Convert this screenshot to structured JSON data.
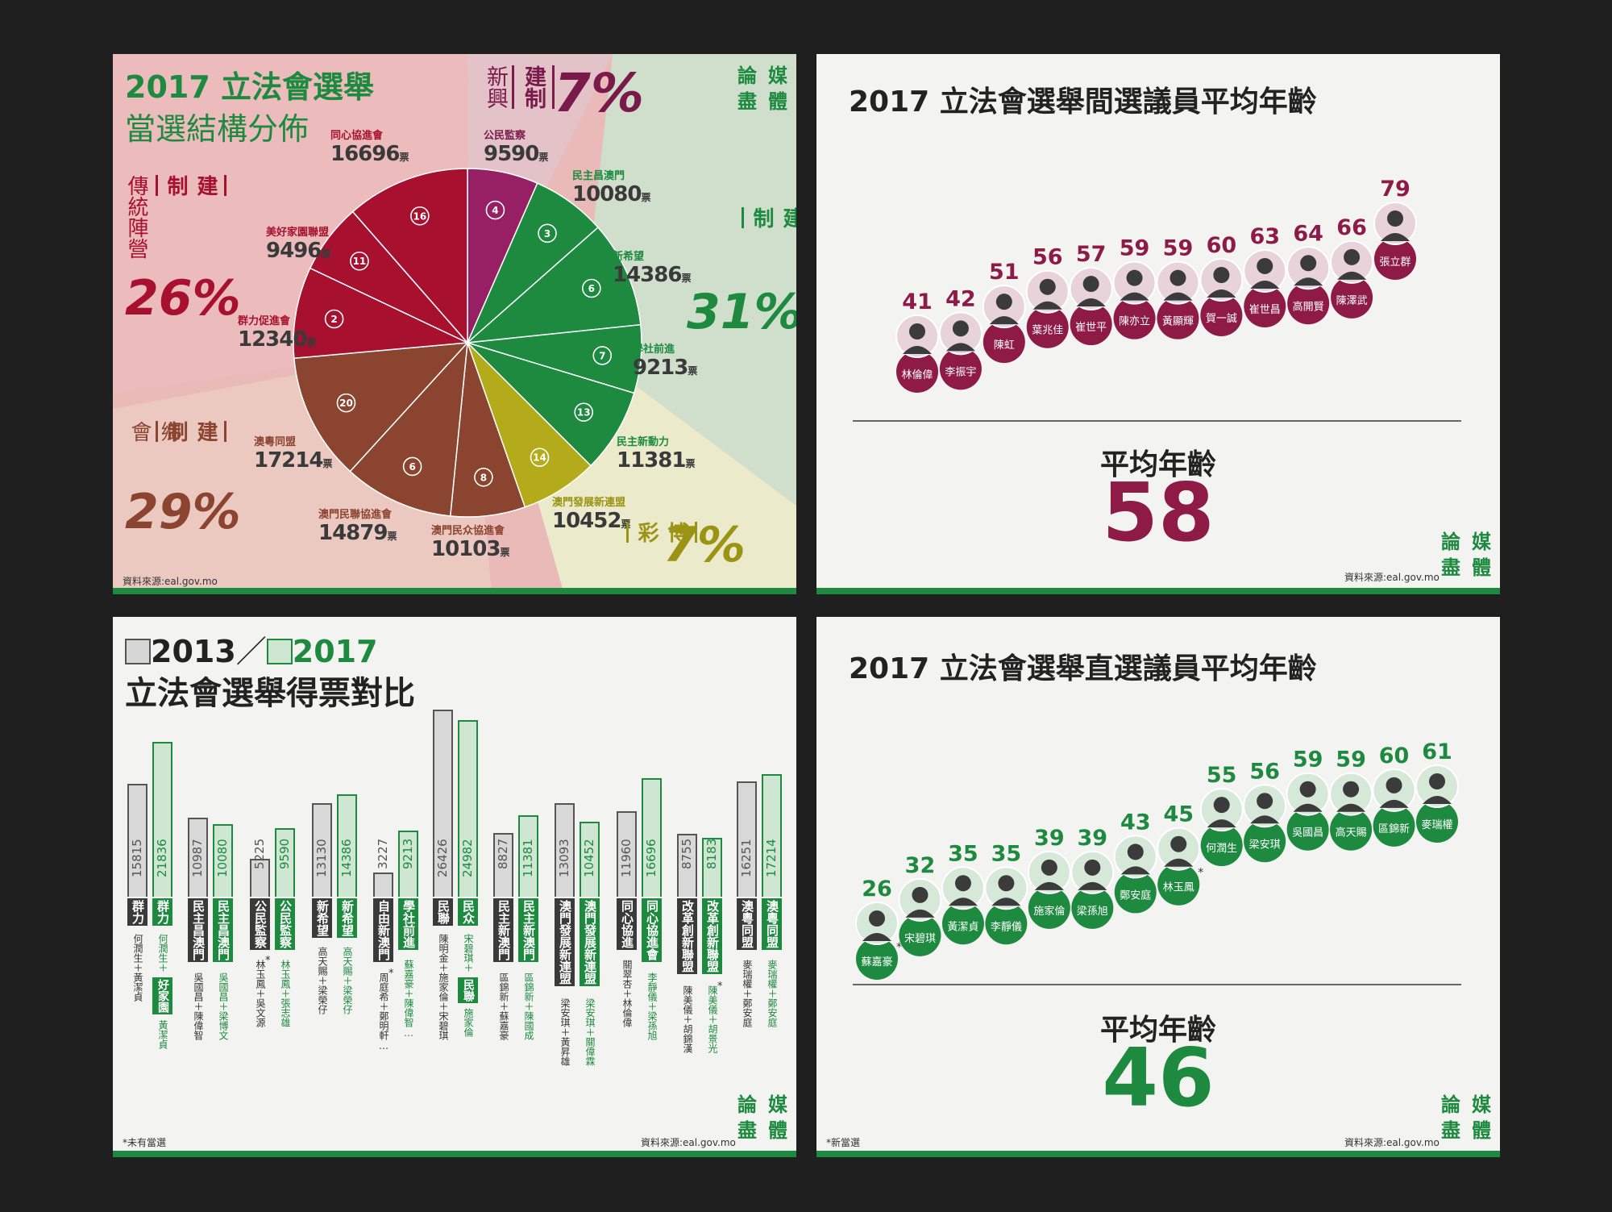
{
  "colors": {
    "green": "#1d8a3f",
    "maroon": "#8e1b45",
    "red": "#a7102f",
    "brown": "#8a4430",
    "olive": "#b3ab1a",
    "purple": "#971f63",
    "panel_bg": "#f3f3f1"
  },
  "logo": [
    "論",
    "媒",
    "盡",
    "體"
  ],
  "source": "資料來源:eal.gov.mo",
  "pie": {
    "title_line1": "2017 立法會選舉",
    "title_line2": "當選結構分佈",
    "groups": [
      {
        "v": "新興",
        "tag": "建制",
        "pct": "7%"
      },
      {
        "v": "傳統陣營",
        "tag": "建制",
        "pct": "26%"
      },
      {
        "v": "鄉會",
        "tag": "建制",
        "pct": "29%"
      },
      {
        "v": "",
        "tag": "非建制",
        "pct": "31%"
      },
      {
        "v": "",
        "tag": "博彩",
        "pct": "7%"
      }
    ],
    "unit": "票"
  },
  "chart_data": [
    {
      "type": "pie",
      "title": "2017 立法會選舉 當選結構分佈",
      "slices": [
        {
          "list": "4",
          "name": "公民監察",
          "votes": 9590,
          "group": "新興建制",
          "color": "#971f63"
        },
        {
          "list": "3",
          "name": "民主昌澳門",
          "votes": 10080,
          "group": "非建制",
          "color": "#1d8a3f"
        },
        {
          "list": "6",
          "name": "新希望",
          "votes": 14386,
          "group": "非建制",
          "color": "#1d8a3f"
        },
        {
          "list": "7",
          "name": "學社前進",
          "votes": 9213,
          "group": "非建制",
          "color": "#1d8a3f"
        },
        {
          "list": "13",
          "name": "民主新動力",
          "votes": 11381,
          "group": "非建制",
          "color": "#1d8a3f"
        },
        {
          "list": "14",
          "name": "澳門發展新連盟",
          "votes": 10452,
          "group": "博彩",
          "color": "#b3ab1a"
        },
        {
          "list": "8",
          "name": "澳門民众協進會",
          "votes": 10103,
          "group": "鄉會建制",
          "color": "#8a4430"
        },
        {
          "list": "6",
          "name": "澳門民聯協進會",
          "votes": 14879,
          "group": "鄉會建制",
          "color": "#8a4430"
        },
        {
          "list": "20",
          "name": "澳粵同盟",
          "votes": 17214,
          "group": "鄉會建制",
          "color": "#8a4430"
        },
        {
          "list": "2",
          "name": "群力促進會",
          "votes": 12340,
          "group": "傳統陣營建制",
          "color": "#a7102f"
        },
        {
          "list": "11",
          "name": "美好家園聯盟",
          "votes": 9496,
          "group": "傳統陣營建制",
          "color": "#a7102f"
        },
        {
          "list": "16",
          "name": "同心協進會",
          "votes": 16696,
          "group": "傳統陣營建制",
          "color": "#a7102f"
        }
      ]
    },
    {
      "type": "scatter",
      "title": "2017 立法會選舉間選議員平均年齡",
      "points": [
        {
          "name": "林倫偉",
          "age": 41
        },
        {
          "name": "李振宇",
          "age": 42
        },
        {
          "name": "陳虹",
          "age": 51
        },
        {
          "name": "葉兆佳",
          "age": 56
        },
        {
          "name": "崔世平",
          "age": 57
        },
        {
          "name": "陳亦立",
          "age": 59
        },
        {
          "name": "黃顯輝",
          "age": 59
        },
        {
          "name": "賀一誠",
          "age": 60
        },
        {
          "name": "崔世昌",
          "age": 63
        },
        {
          "name": "高開賢",
          "age": 64
        },
        {
          "name": "陳澤武",
          "age": 66
        },
        {
          "name": "張立群",
          "age": 79
        }
      ],
      "average_label": "平均年齡",
      "average": "58"
    },
    {
      "type": "bar",
      "title_y1": "2013",
      "sep": "／",
      "title_y2": "2017",
      "title_line2": "立法會選舉得票對比",
      "series": [
        {
          "name": "2013"
        },
        {
          "name": "2017"
        }
      ],
      "groups": [
        {
          "v2013": 15815,
          "v2017": 21836,
          "label2013": "群力",
          "label2017": "群力",
          "cand2013": "何潤生＋黃潔貞",
          "cand2017": "何潤生＋",
          "tag2017": "好家園",
          "extra2017": "黃潔貞"
        },
        {
          "v2013": 10987,
          "v2017": 10080,
          "label2013": "民主昌澳門",
          "label2017": "民主昌澳門",
          "cand2013": "吳國昌＋陳偉智",
          "cand2017": "吳國昌＋梁博文"
        },
        {
          "v2013": 5225,
          "v2017": 9590,
          "label2013": "公民監察",
          "label2017": "公民監察",
          "cand2013": "林玉鳳＋吳文源",
          "cand2017": "林玉鳳＋張志雄",
          "star2013": true
        },
        {
          "v2013": 13130,
          "v2017": 14386,
          "label2013": "新希望",
          "label2017": "新希望",
          "cand2013": "高天賜＋梁榮仔",
          "cand2017": "高天賜＋梁榮仔"
        },
        {
          "v2013": 3227,
          "v2017": 9213,
          "label2013": "自由新澳門",
          "label2017": "學社前進",
          "cand2013": "周庭希＋鄭明軒…",
          "cand2017": "蘇嘉豪＋陳偉智…",
          "star2013": true
        },
        {
          "v2013": 26426,
          "v2017": 24982,
          "label2013": "民聯",
          "label2017": "民众",
          "cand2013": "陳明金＋施家倫＋宋碧琪",
          "cand2017": "宋碧琪＋",
          "tag2017": "民聯",
          "extra2017": "施家倫"
        },
        {
          "v2013": 8827,
          "v2017": 11381,
          "label2013": "民主新澳門",
          "label2017": "民主新澳門",
          "cand2013": "區錦新＋蘇嘉豪",
          "cand2017": "區錦新＋陳國成"
        },
        {
          "v2013": 13093,
          "v2017": 10452,
          "label2013": "澳門發展新連盟",
          "label2017": "澳門發展新連盟",
          "cand2013": "梁安琪＋黃昇雄",
          "cand2017": "梁安琪＋關偉霖"
        },
        {
          "v2013": 11960,
          "v2017": 16696,
          "label2013": "同心協進",
          "label2017": "同心協進會",
          "cand2013": "關翠杏＋林倫偉",
          "cand2017": "李靜儀＋梁孫旭"
        },
        {
          "v2013": 8755,
          "v2017": 8183,
          "label2013": "改革創新聯盟",
          "label2017": "改革創新聯盟",
          "cand2013": "陳美儀＋胡錦漢",
          "cand2017": "陳美儀＋胡景光",
          "star2017": true
        },
        {
          "v2013": 16251,
          "v2017": 17214,
          "label2013": "澳粵同盟",
          "label2017": "澳粵同盟",
          "cand2013": "麥瑞權＋鄭安庭",
          "cand2017": "麥瑞權＋鄭安庭"
        }
      ],
      "footnote": "*未有當選"
    },
    {
      "type": "scatter",
      "title": "2017 立法會選舉直選議員平均年齡",
      "points": [
        {
          "name": "蘇嘉豪",
          "age": 26,
          "star": true
        },
        {
          "name": "宋碧琪",
          "age": 32
        },
        {
          "name": "黃潔貞",
          "age": 35
        },
        {
          "name": "李靜儀",
          "age": 35
        },
        {
          "name": "施家倫",
          "age": 39
        },
        {
          "name": "梁孫旭",
          "age": 39
        },
        {
          "name": "鄭安庭",
          "age": 43
        },
        {
          "name": "林玉鳳",
          "age": 45,
          "star": true
        },
        {
          "name": "何潤生",
          "age": 55
        },
        {
          "name": "梁安琪",
          "age": 56
        },
        {
          "name": "吳國昌",
          "age": 59
        },
        {
          "name": "高天賜",
          "age": 59
        },
        {
          "name": "區錦新",
          "age": 60
        },
        {
          "name": "麥瑞權",
          "age": 61
        }
      ],
      "average_label": "平均年齡",
      "average": "46",
      "footnote": "*新當選"
    }
  ]
}
